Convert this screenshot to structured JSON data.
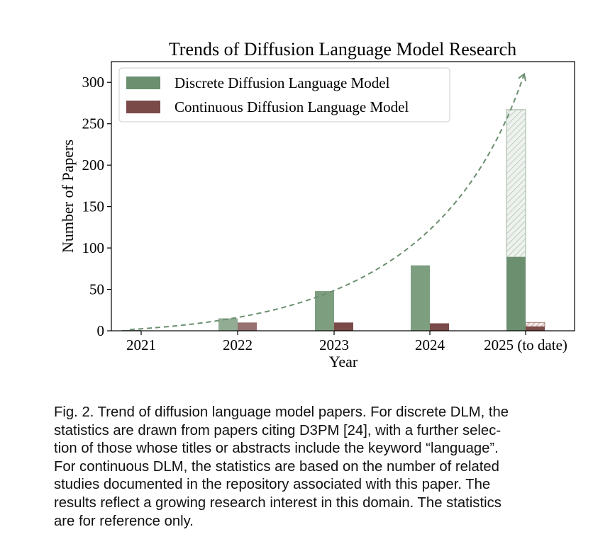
{
  "chart_data": {
    "type": "bar",
    "title": "Trends of Diffusion Language Model Research",
    "xlabel": "Year",
    "ylabel": "Number of Papers",
    "categories": [
      "2021",
      "2022",
      "2023",
      "2024",
      "2025 (to date)"
    ],
    "ylim": [
      0,
      325
    ],
    "yticks": [
      0,
      50,
      100,
      150,
      200,
      250,
      300
    ],
    "series": [
      {
        "name": "Discrete Diffusion Language Model",
        "values": [
          1,
          15,
          48,
          79,
          89
        ],
        "projected_value_2025": 267,
        "color": "#6b8f6f"
      },
      {
        "name": "Continuous Diffusion Language Model",
        "values": [
          0,
          10,
          10,
          9,
          5
        ],
        "projected_value_2025": 10,
        "color": "#7a4a48"
      }
    ],
    "trend_line": {
      "style": "dashed",
      "color": "#6b8f6f",
      "arrow": true
    },
    "legend_position": "top-left",
    "grid": false
  },
  "caption": {
    "lines": [
      "Fig. 2. Trend of diffusion language model papers. For discrete DLM, the",
      "statistics are drawn from papers citing D3PM [24], with a further selec-",
      "tion of those whose titles or abstracts include the keyword “language”.",
      "For continuous DLM, the statistics are based on the number of related",
      "studies documented in the repository associated with this paper. The",
      "results reflect a growing research interest in this domain. The statistics",
      "are for reference only."
    ]
  }
}
